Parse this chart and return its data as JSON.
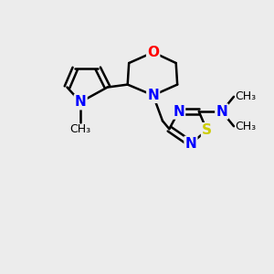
{
  "bg_color": "#ececec",
  "bond_color": "#000000",
  "N_color": "#0000ff",
  "O_color": "#ff0000",
  "S_color": "#cccc00",
  "line_width": 1.8,
  "font_size_atom": 11,
  "font_size_methyl": 9,
  "figsize": [
    3.0,
    3.0
  ],
  "dpi": 100,
  "xlim": [
    0,
    10
  ],
  "ylim": [
    0,
    10
  ]
}
